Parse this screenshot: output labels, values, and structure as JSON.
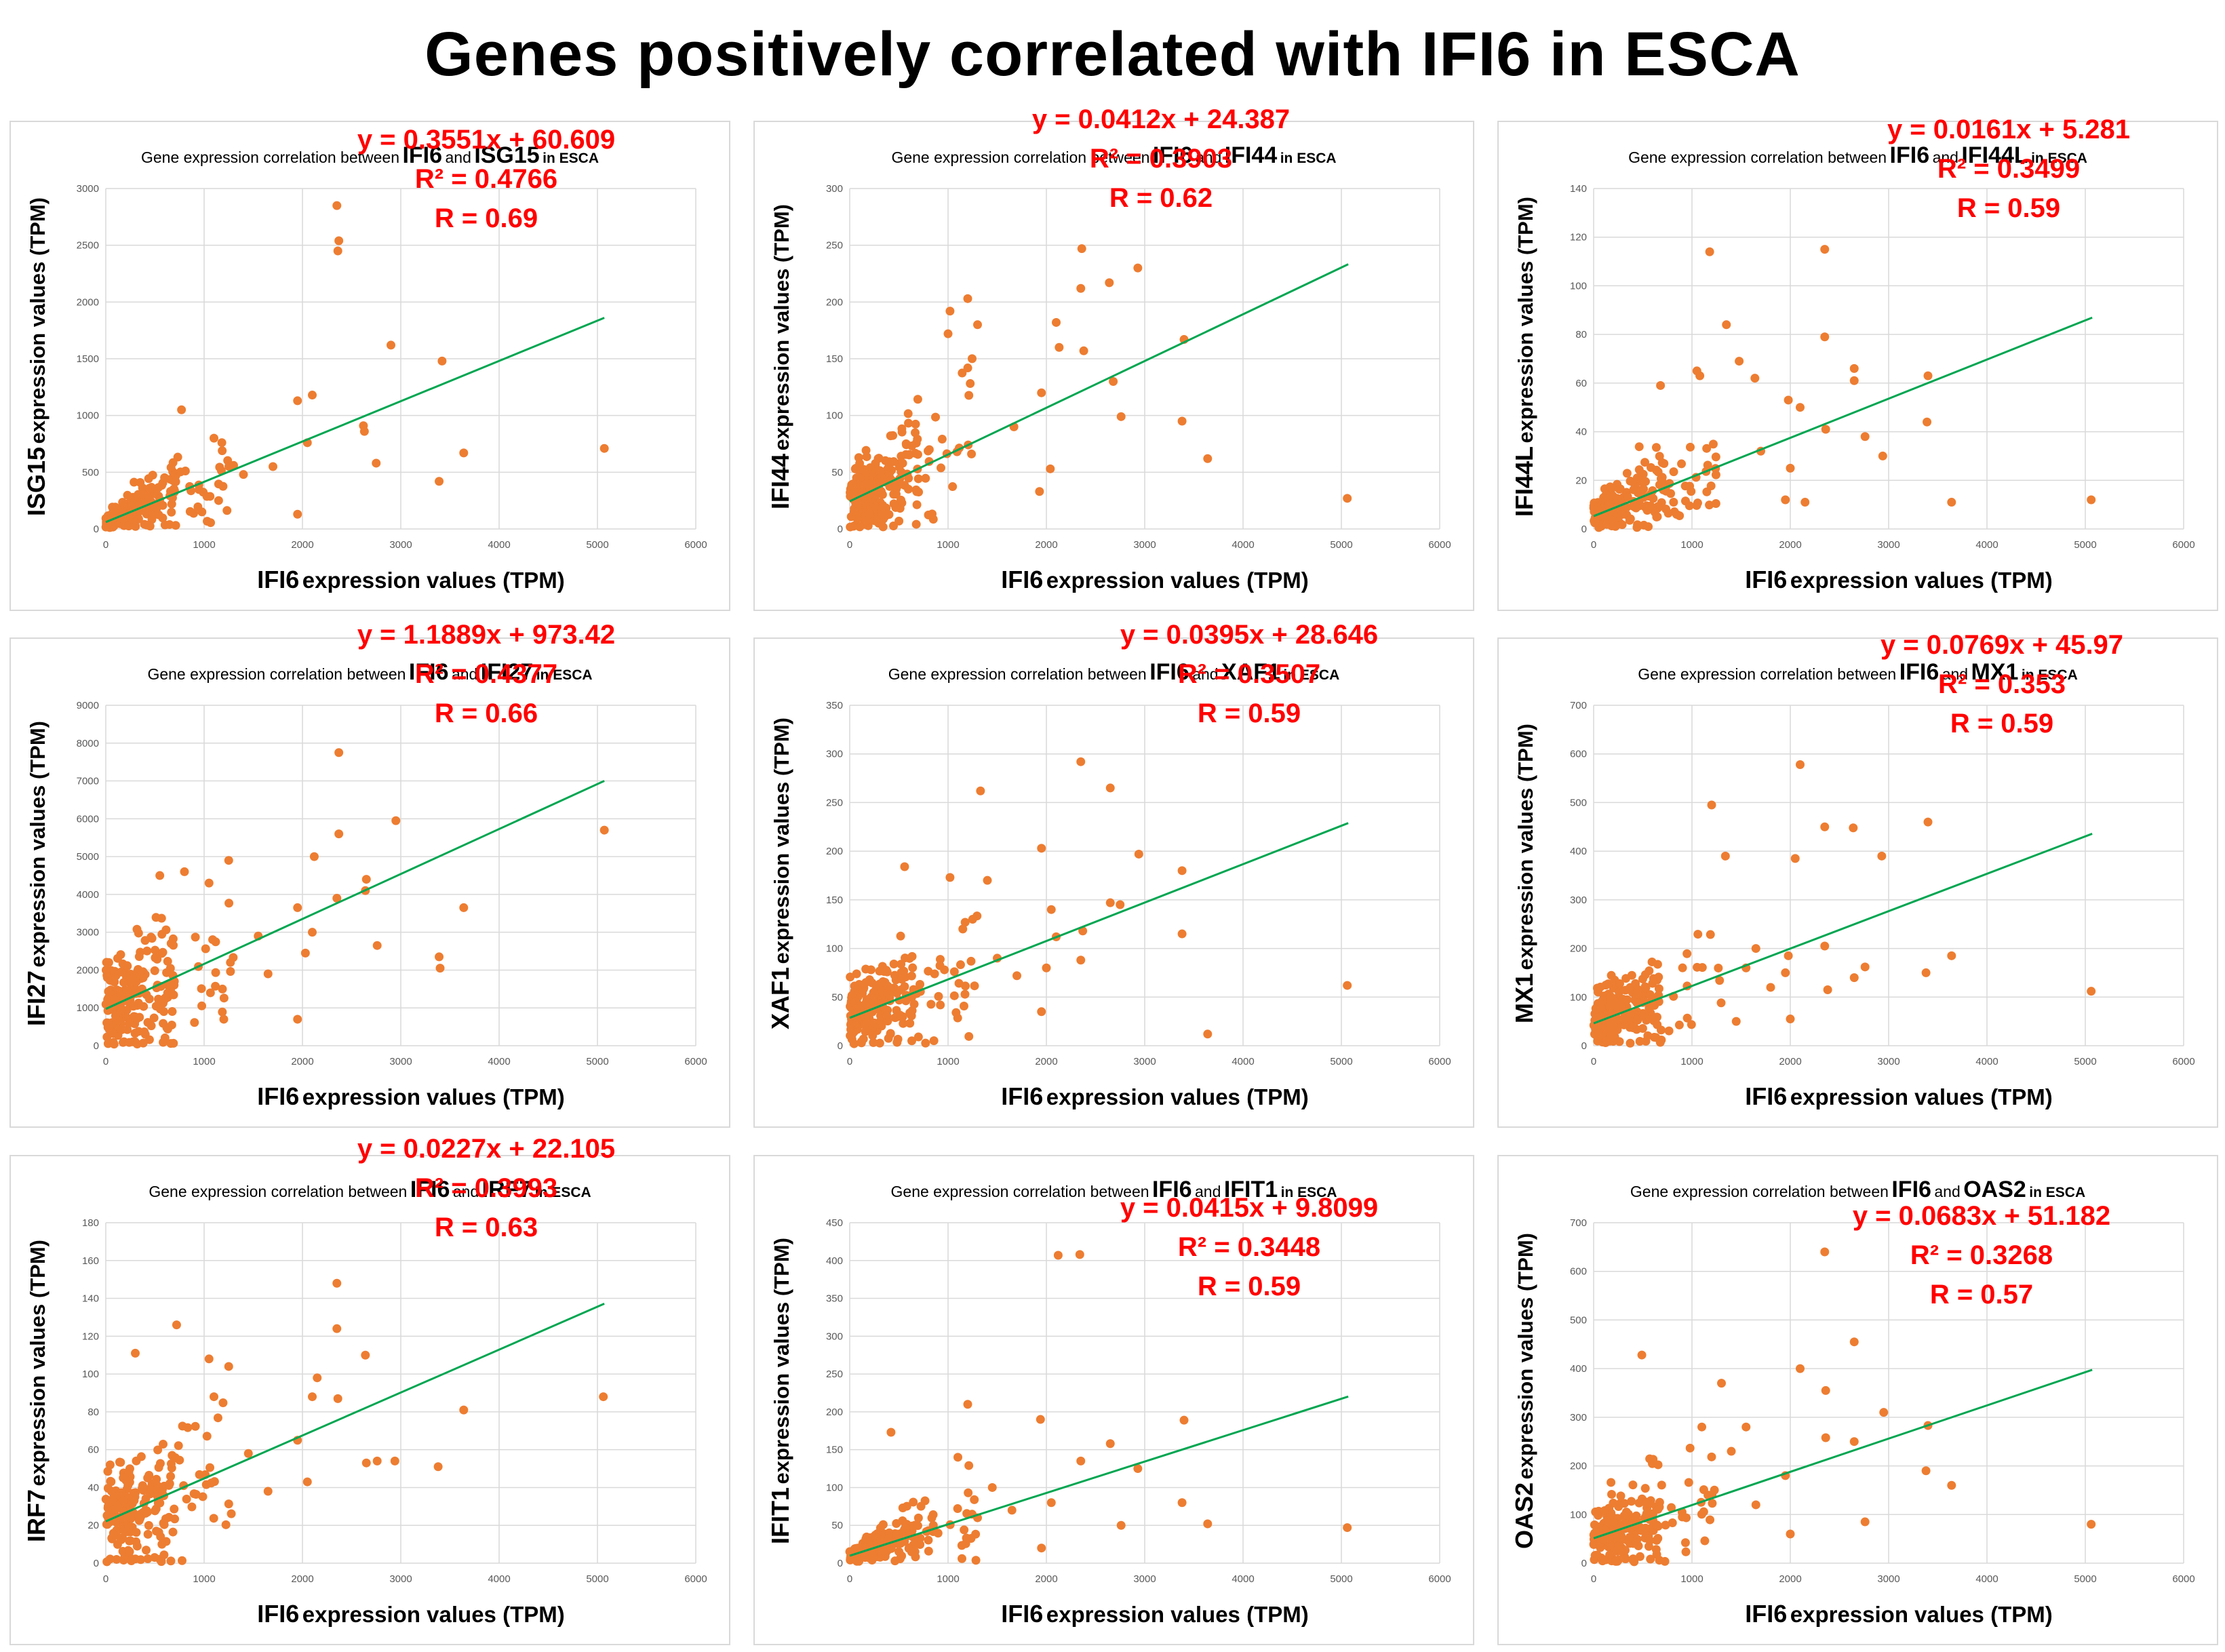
{
  "page_title": "Genes positively correlated with IFI6 in ESCA",
  "common": {
    "title_prefix": "Gene expression correlation between",
    "title_and": "and",
    "title_suffix": "in ESCA",
    "x_gene": "IFI6",
    "axis_rest": "expression values (TPM)"
  },
  "colors": {
    "points": "#ED7D31",
    "trend": "#00A651",
    "equation": "#FF0000",
    "grid": "#D9D9D9"
  },
  "chart_data": [
    {
      "type": "scatter",
      "gene": "ISG15",
      "title": "Gene expression correlation between IFI6 and ISG15 in ESCA",
      "xlabel": "IFI6 expression values (TPM)",
      "ylabel": "ISG15 expression values (TPM)",
      "xlim": [
        0,
        6000
      ],
      "xticks": [
        0,
        1000,
        2000,
        3000,
        4000,
        5000,
        6000
      ],
      "ylim": [
        0,
        3000
      ],
      "yticks": [
        0,
        500,
        1000,
        1500,
        2000,
        2500,
        3000
      ],
      "trendline": {
        "slope": 0.3551,
        "intercept": 60.609,
        "x_range": [
          0,
          5070
        ]
      },
      "equation": "y = 0.3551x + 60.609",
      "r2": "R² = 0.4766",
      "r": "R = 0.69",
      "outliers": [
        [
          2350,
          2850
        ],
        [
          2370,
          2540
        ],
        [
          2360,
          2450
        ],
        [
          2100,
          1180
        ],
        [
          1950,
          1130
        ],
        [
          2900,
          1620
        ],
        [
          3420,
          1480
        ],
        [
          3640,
          670
        ],
        [
          3390,
          420
        ],
        [
          5070,
          710
        ],
        [
          2620,
          910
        ],
        [
          2630,
          860
        ],
        [
          2750,
          580
        ],
        [
          2050,
          760
        ],
        [
          1950,
          130
        ],
        [
          1700,
          550
        ],
        [
          1300,
          560
        ],
        [
          1100,
          800
        ],
        [
          770,
          1050
        ],
        [
          1400,
          480
        ]
      ]
    },
    {
      "type": "scatter",
      "gene": "IFI44",
      "title": "Gene expression correlation between IFI6 and IFI44 in ESCA",
      "xlabel": "IFI6 expression values (TPM)",
      "ylabel": "IFI44 expression values (TPM)",
      "xlim": [
        0,
        6000
      ],
      "xticks": [
        0,
        1000,
        2000,
        3000,
        4000,
        5000,
        6000
      ],
      "ylim": [
        0,
        300
      ],
      "yticks": [
        0,
        50,
        100,
        150,
        200,
        250,
        300
      ],
      "trendline": {
        "slope": 0.0412,
        "intercept": 24.387,
        "x_range": [
          0,
          5070
        ]
      },
      "equation": "y = 0.0412x + 24.387",
      "r2": "R² = 0.3903",
      "r": "R = 0.62",
      "outliers": [
        [
          2360,
          247
        ],
        [
          2930,
          230
        ],
        [
          2640,
          217
        ],
        [
          2100,
          182
        ],
        [
          2350,
          212
        ],
        [
          1200,
          203
        ],
        [
          1020,
          192
        ],
        [
          1300,
          180
        ],
        [
          2380,
          157
        ],
        [
          2130,
          160
        ],
        [
          3400,
          167
        ],
        [
          2680,
          130
        ],
        [
          2760,
          99
        ],
        [
          3380,
          95
        ],
        [
          3640,
          62
        ],
        [
          5060,
          27
        ],
        [
          2040,
          53
        ],
        [
          1930,
          33
        ],
        [
          1670,
          90
        ],
        [
          1950,
          120
        ],
        [
          1000,
          172
        ]
      ]
    },
    {
      "type": "scatter",
      "gene": "IFI44L",
      "title": "Gene expression correlation between IFI6 and IFI44L in ESCA",
      "xlabel": "IFI6 expression values (TPM)",
      "ylabel": "IFI44L expression values (TPM)",
      "xlim": [
        0,
        6000
      ],
      "xticks": [
        0,
        1000,
        2000,
        3000,
        4000,
        5000,
        6000
      ],
      "ylim": [
        0,
        140
      ],
      "yticks": [
        0,
        20,
        40,
        60,
        80,
        100,
        120,
        140
      ],
      "trendline": {
        "slope": 0.0161,
        "intercept": 5.281,
        "x_range": [
          0,
          5070
        ]
      },
      "equation": "y = 0.0161x + 5.281",
      "r2": "R² = 0.3499",
      "r": "R = 0.59",
      "outliers": [
        [
          1180,
          114
        ],
        [
          2350,
          115
        ],
        [
          1350,
          84
        ],
        [
          2350,
          79
        ],
        [
          1480,
          69
        ],
        [
          1640,
          62
        ],
        [
          2650,
          66
        ],
        [
          2650,
          61
        ],
        [
          3400,
          63
        ],
        [
          1980,
          53
        ],
        [
          2100,
          50
        ],
        [
          2360,
          41
        ],
        [
          2760,
          38
        ],
        [
          2940,
          30
        ],
        [
          3390,
          44
        ],
        [
          3640,
          11
        ],
        [
          5060,
          12
        ],
        [
          1950,
          12
        ],
        [
          2150,
          11
        ],
        [
          1700,
          32
        ],
        [
          2000,
          25
        ],
        [
          1050,
          65
        ],
        [
          1080,
          63
        ],
        [
          680,
          59
        ]
      ]
    },
    {
      "type": "scatter",
      "gene": "IFI27",
      "title": "Gene expression correlation between IFI6 and IFI27 in ESCA",
      "xlabel": "IFI6 expression values (TPM)",
      "ylabel": "IFI27 expression values (TPM)",
      "xlim": [
        0,
        6000
      ],
      "xticks": [
        0,
        1000,
        2000,
        3000,
        4000,
        5000,
        6000
      ],
      "ylim": [
        0,
        9000
      ],
      "yticks": [
        0,
        1000,
        2000,
        3000,
        4000,
        5000,
        6000,
        7000,
        8000,
        9000
      ],
      "trendline": {
        "slope": 1.1889,
        "intercept": 973.42,
        "x_range": [
          0,
          5070
        ]
      },
      "equation": "y = 1.1889x + 973.42",
      "r2": "R² = 0.4377",
      "r": "R = 0.66",
      "outliers": [
        [
          2370,
          7750
        ],
        [
          2950,
          5950
        ],
        [
          2370,
          5600
        ],
        [
          2120,
          5000
        ],
        [
          5070,
          5700
        ],
        [
          2650,
          4400
        ],
        [
          2640,
          4100
        ],
        [
          3640,
          3650
        ],
        [
          2350,
          3900
        ],
        [
          3390,
          2350
        ],
        [
          3400,
          2050
        ],
        [
          2760,
          2650
        ],
        [
          1950,
          3650
        ],
        [
          2030,
          2450
        ],
        [
          1950,
          700
        ],
        [
          1650,
          1900
        ],
        [
          1550,
          2900
        ],
        [
          1250,
          4900
        ],
        [
          1050,
          4300
        ],
        [
          800,
          4600
        ],
        [
          2100,
          3000
        ],
        [
          1200,
          700
        ]
      ]
    },
    {
      "type": "scatter",
      "gene": "XAF1",
      "title": "Gene expression correlation between IFI6 and XAF1 in ESCA",
      "xlabel": "IFI6 expression values (TPM)",
      "ylabel": "XAF1 expression values (TPM)",
      "xlim": [
        0,
        6000
      ],
      "xticks": [
        0,
        1000,
        2000,
        3000,
        4000,
        5000,
        6000
      ],
      "ylim": [
        0,
        350
      ],
      "yticks": [
        0,
        50,
        100,
        150,
        200,
        250,
        300,
        350
      ],
      "trendline": {
        "slope": 0.0395,
        "intercept": 28.646,
        "x_range": [
          0,
          5070
        ]
      },
      "equation": "y = 0.0395x + 28.646",
      "r2": "R² = 0.3507",
      "r": "R = 0.59",
      "outliers": [
        [
          2350,
          292
        ],
        [
          2650,
          265
        ],
        [
          1330,
          262
        ],
        [
          1950,
          203
        ],
        [
          2940,
          197
        ],
        [
          3380,
          180
        ],
        [
          1020,
          173
        ],
        [
          2650,
          147
        ],
        [
          2750,
          145
        ],
        [
          2050,
          140
        ],
        [
          2100,
          112
        ],
        [
          2370,
          118
        ],
        [
          3380,
          115
        ],
        [
          2350,
          88
        ],
        [
          1950,
          35
        ],
        [
          1700,
          72
        ],
        [
          1500,
          90
        ],
        [
          3640,
          12
        ],
        [
          5060,
          62
        ],
        [
          2000,
          80
        ],
        [
          1150,
          120
        ],
        [
          1250,
          130
        ],
        [
          1400,
          170
        ]
      ]
    },
    {
      "type": "scatter",
      "gene": "MX1",
      "title": "Gene expression correlation between IFI6 and MX1 in ESCA",
      "xlabel": "IFI6 expression values (TPM)",
      "ylabel": "MX1 expression values (TPM)",
      "xlim": [
        0,
        6000
      ],
      "xticks": [
        0,
        1000,
        2000,
        3000,
        4000,
        5000,
        6000
      ],
      "ylim": [
        0,
        700
      ],
      "yticks": [
        0,
        100,
        200,
        300,
        400,
        500,
        600,
        700
      ],
      "trendline": {
        "slope": 0.0769,
        "intercept": 45.97,
        "x_range": [
          0,
          5070
        ]
      },
      "equation": "y = 0.0769x + 45.97",
      "r2": "R² = 0.353",
      "r": "R = 0.59",
      "outliers": [
        [
          2100,
          578
        ],
        [
          1200,
          495
        ],
        [
          2350,
          450
        ],
        [
          2640,
          448
        ],
        [
          3400,
          460
        ],
        [
          1340,
          390
        ],
        [
          2930,
          390
        ],
        [
          2050,
          385
        ],
        [
          1650,
          200
        ],
        [
          1980,
          185
        ],
        [
          2350,
          205
        ],
        [
          2380,
          115
        ],
        [
          2650,
          140
        ],
        [
          2760,
          162
        ],
        [
          3380,
          150
        ],
        [
          3640,
          185
        ],
        [
          5060,
          112
        ],
        [
          1950,
          150
        ],
        [
          2000,
          55
        ],
        [
          1450,
          50
        ],
        [
          1800,
          120
        ],
        [
          1550,
          160
        ]
      ]
    },
    {
      "type": "scatter",
      "gene": "IRF7",
      "title": "Gene expression correlation between IFI6 and IRF7 in ESCA",
      "xlabel": "IFI6 expression values (TPM)",
      "ylabel": "IRF7 expression values (TPM)",
      "xlim": [
        0,
        6000
      ],
      "xticks": [
        0,
        1000,
        2000,
        3000,
        4000,
        5000,
        6000
      ],
      "ylim": [
        0,
        180
      ],
      "yticks": [
        0,
        20,
        40,
        60,
        80,
        100,
        120,
        140,
        160,
        180
      ],
      "trendline": {
        "slope": 0.0227,
        "intercept": 22.105,
        "x_range": [
          0,
          5070
        ]
      },
      "equation": "y = 0.0227x + 22.105",
      "r2": "R² = 0.3993",
      "r": "R = 0.63",
      "outliers": [
        [
          2350,
          148
        ],
        [
          2350,
          124
        ],
        [
          720,
          126
        ],
        [
          300,
          111
        ],
        [
          1050,
          108
        ],
        [
          2640,
          110
        ],
        [
          1250,
          104
        ],
        [
          2150,
          98
        ],
        [
          2100,
          88
        ],
        [
          2360,
          87
        ],
        [
          3640,
          81
        ],
        [
          5060,
          88
        ],
        [
          1100,
          88
        ],
        [
          2650,
          53
        ],
        [
          2760,
          54
        ],
        [
          2940,
          54
        ],
        [
          3380,
          51
        ],
        [
          2050,
          43
        ],
        [
          1950,
          65
        ],
        [
          1650,
          38
        ],
        [
          1450,
          58
        ]
      ]
    },
    {
      "type": "scatter",
      "gene": "IFIT1",
      "title": "Gene expression correlation between IFI6 and IFIT1 in ESCA",
      "xlabel": "IFI6 expression values (TPM)",
      "ylabel": "IFIT1 expression values (TPM)",
      "xlim": [
        0,
        6000
      ],
      "xticks": [
        0,
        1000,
        2000,
        3000,
        4000,
        5000,
        6000
      ],
      "ylim": [
        0,
        450
      ],
      "yticks": [
        0,
        50,
        100,
        150,
        200,
        250,
        300,
        350,
        400,
        450
      ],
      "trendline": {
        "slope": 0.0415,
        "intercept": 9.8099,
        "x_range": [
          0,
          5070
        ]
      },
      "equation": "y = 0.0415x + 9.8099",
      "r2": "R² = 0.3448",
      "r": "R = 0.59",
      "outliers": [
        [
          2120,
          407
        ],
        [
          2340,
          408
        ],
        [
          1200,
          210
        ],
        [
          1940,
          190
        ],
        [
          3400,
          189
        ],
        [
          420,
          173
        ],
        [
          2650,
          158
        ],
        [
          2930,
          125
        ],
        [
          2350,
          135
        ],
        [
          1950,
          20
        ],
        [
          2760,
          50
        ],
        [
          3380,
          80
        ],
        [
          3640,
          52
        ],
        [
          5060,
          47
        ],
        [
          2050,
          80
        ],
        [
          1650,
          70
        ],
        [
          1450,
          100
        ],
        [
          1100,
          140
        ],
        [
          1300,
          60
        ]
      ]
    },
    {
      "type": "scatter",
      "gene": "OAS2",
      "title": "Gene expression correlation between IFI6 and OAS2 in ESCA",
      "xlabel": "IFI6 expression values (TPM)",
      "ylabel": "OAS2 expression values (TPM)",
      "xlim": [
        0,
        6000
      ],
      "xticks": [
        0,
        1000,
        2000,
        3000,
        4000,
        5000,
        6000
      ],
      "ylim": [
        0,
        700
      ],
      "yticks": [
        0,
        100,
        200,
        300,
        400,
        500,
        600,
        700
      ],
      "trendline": {
        "slope": 0.0683,
        "intercept": 51.182,
        "x_range": [
          0,
          5070
        ]
      },
      "equation": "y = 0.0683x + 51.182",
      "r2": "R² = 0.3268",
      "r": "R = 0.57",
      "outliers": [
        [
          2350,
          640
        ],
        [
          2650,
          455
        ],
        [
          490,
          428
        ],
        [
          2100,
          400
        ],
        [
          1300,
          370
        ],
        [
          2360,
          355
        ],
        [
          2950,
          310
        ],
        [
          3400,
          283
        ],
        [
          2360,
          258
        ],
        [
          2650,
          250
        ],
        [
          1550,
          280
        ],
        [
          3380,
          190
        ],
        [
          3640,
          160
        ],
        [
          5060,
          80
        ],
        [
          2760,
          85
        ],
        [
          1950,
          180
        ],
        [
          2000,
          60
        ],
        [
          1650,
          120
        ],
        [
          1400,
          230
        ],
        [
          1100,
          280
        ]
      ]
    }
  ]
}
